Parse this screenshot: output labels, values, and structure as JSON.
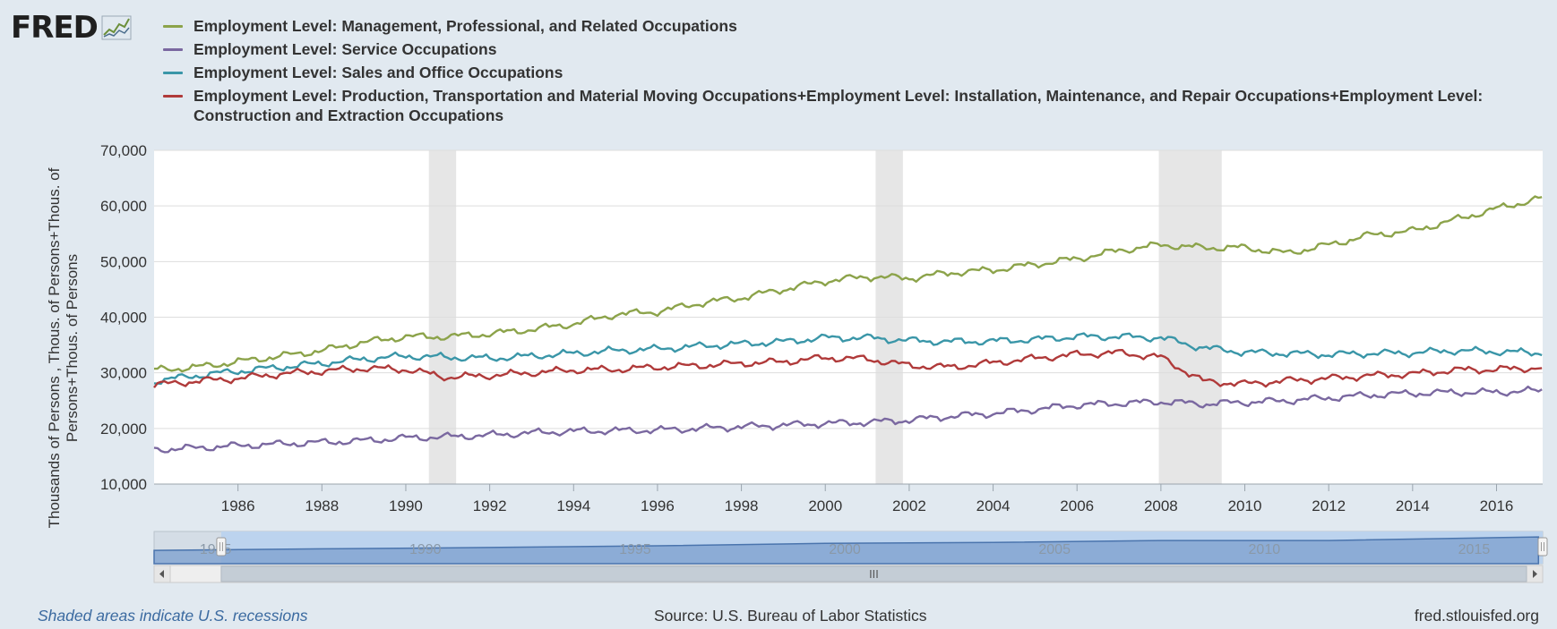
{
  "logo": {
    "text": "FRED",
    "icon": "sparkline-chart-icon"
  },
  "colors": {
    "background": "#e1e9f0",
    "management": "#8ca34a",
    "service": "#7a68a0",
    "sales": "#3a96a8",
    "production": "#b03a3a",
    "recession": "#e6e6e6",
    "navigator_fill": "#7fa2cf"
  },
  "legend": [
    {
      "label": "Employment Level: Management, Professional, and Related Occupations",
      "color": "#8ca34a"
    },
    {
      "label": "Employment Level: Service Occupations",
      "color": "#7a68a0"
    },
    {
      "label": "Employment Level: Sales and Office Occupations",
      "color": "#3a96a8"
    },
    {
      "label": "Employment Level: Production, Transportation and Material Moving Occupations+Employment Level: Installation, Maintenance, and Repair Occupations+Employment Level: Construction and Extraction Occupations",
      "color": "#b03a3a"
    }
  ],
  "chart_data": {
    "type": "line",
    "ylabel_lines": [
      "Thousands of Persons , Thous. of Persons+Thous. of",
      "Persons+Thous. of Persons"
    ],
    "ylim": [
      10000,
      70000
    ],
    "yticks": [
      10000,
      20000,
      30000,
      40000,
      50000,
      60000,
      70000
    ],
    "ytick_labels": [
      "10,000",
      "20,000",
      "30,000",
      "40,000",
      "50,000",
      "60,000",
      "70,000"
    ],
    "xlim": [
      1984.0,
      2017.1
    ],
    "xticks": [
      1986,
      1988,
      1990,
      1992,
      1994,
      1996,
      1998,
      2000,
      2002,
      2004,
      2006,
      2008,
      2010,
      2012,
      2014,
      2016
    ],
    "grid": true,
    "legend_position": "top",
    "recessions": [
      [
        1990.55,
        1991.2
      ],
      [
        2001.2,
        2001.85
      ],
      [
        2007.95,
        2009.45
      ]
    ],
    "series": [
      {
        "name": "Employment Level: Management, Professional, and Related Occupations",
        "color": "#8ca34a",
        "x": [
          1984,
          1985,
          1986,
          1987,
          1988,
          1989,
          1990,
          1991,
          1992,
          1993,
          1994,
          1995,
          1996,
          1997,
          1998,
          1999,
          2000,
          2001,
          2002,
          2003,
          2004,
          2005,
          2006,
          2007,
          2008,
          2009,
          2010,
          2011,
          2012,
          2013,
          2014,
          2015,
          2016,
          2017
        ],
        "y": [
          30500,
          31000,
          32000,
          33000,
          34000,
          35500,
          36500,
          36500,
          37000,
          37800,
          38800,
          40500,
          41000,
          42500,
          43500,
          45000,
          46500,
          47300,
          47000,
          48000,
          48500,
          49500,
          50500,
          52000,
          53000,
          52500,
          52500,
          51500,
          53000,
          54800,
          55500,
          57500,
          59500,
          61300
        ]
      },
      {
        "name": "Employment Level: Service Occupations",
        "color": "#7a68a0",
        "x": [
          1984,
          1985,
          1986,
          1987,
          1988,
          1989,
          1990,
          1991,
          1992,
          1993,
          1994,
          1995,
          1996,
          1997,
          1998,
          1999,
          2000,
          2001,
          2002,
          2003,
          2004,
          2005,
          2006,
          2007,
          2008,
          2009,
          2010,
          2011,
          2012,
          2013,
          2014,
          2015,
          2016,
          2017
        ],
        "y": [
          16200,
          16500,
          16900,
          17200,
          17500,
          17800,
          18300,
          18500,
          18800,
          19200,
          19500,
          19600,
          19700,
          20000,
          20300,
          20600,
          20900,
          21100,
          21500,
          22200,
          22700,
          23400,
          24200,
          24500,
          24800,
          24400,
          24700,
          25000,
          25500,
          26000,
          26300,
          26500,
          26500,
          26800
        ]
      },
      {
        "name": "Employment Level: Sales and Office Occupations",
        "color": "#3a96a8",
        "x": [
          1984,
          1985,
          1986,
          1987,
          1988,
          1989,
          1990,
          1991,
          1992,
          1993,
          1994,
          1995,
          1996,
          1997,
          1998,
          1999,
          2000,
          2001,
          2002,
          2003,
          2004,
          2005,
          2006,
          2007,
          2008,
          2009,
          2010,
          2011,
          2012,
          2013,
          2014,
          2015,
          2016,
          2017
        ],
        "y": [
          28500,
          29500,
          30300,
          31000,
          31700,
          32500,
          33000,
          32800,
          32600,
          33000,
          33500,
          34000,
          34300,
          34800,
          35200,
          35600,
          36300,
          36300,
          35800,
          35600,
          35700,
          36000,
          36500,
          36500,
          36300,
          34500,
          33700,
          33500,
          33300,
          33500,
          33600,
          34000,
          33800,
          33600
        ]
      },
      {
        "name": "Employment Level: Production, Transportation and Material Moving Occupations+Employment Level: Installation, Maintenance, and Repair Occupations+Employment Level: Construction and Extraction Occupations",
        "color": "#b03a3a",
        "x": [
          1984,
          1985,
          1986,
          1987,
          1988,
          1989,
          1990,
          1991,
          1992,
          1993,
          1994,
          1995,
          1996,
          1997,
          1998,
          1999,
          2000,
          2001,
          2002,
          2003,
          2004,
          2005,
          2006,
          2007,
          2008,
          2009,
          2010,
          2011,
          2012,
          2013,
          2014,
          2015,
          2016,
          2017
        ],
        "y": [
          27800,
          28500,
          29000,
          29800,
          30300,
          30800,
          30600,
          29200,
          29500,
          30000,
          30500,
          30600,
          31000,
          31300,
          31700,
          32000,
          32700,
          32500,
          31300,
          31000,
          31800,
          32600,
          33300,
          33600,
          32800,
          28500,
          28000,
          28600,
          29000,
          29500,
          29800,
          30500,
          30600,
          30900
        ]
      }
    ]
  },
  "navigator": {
    "labels": [
      "1985",
      "1990",
      "1995",
      "2000",
      "2005",
      "2010",
      "2015"
    ],
    "xlim": [
      1984.0,
      2017.1
    ],
    "series_x": [
      1984,
      1988,
      1992,
      1996,
      2000,
      2004,
      2008,
      2012,
      2016,
      2017
    ],
    "series_y": [
      30500,
      34000,
      37000,
      41000,
      46500,
      48500,
      53000,
      53000,
      59500,
      61300
    ],
    "ylim": [
      0,
      70000
    ],
    "selection": [
      1985.6,
      2017.1
    ],
    "scrollbar_grip": "III"
  },
  "footer": {
    "note": "Shaded areas indicate U.S. recessions",
    "source": "Source: U.S. Bureau of Labor Statistics",
    "site": "fred.stlouisfed.org"
  }
}
